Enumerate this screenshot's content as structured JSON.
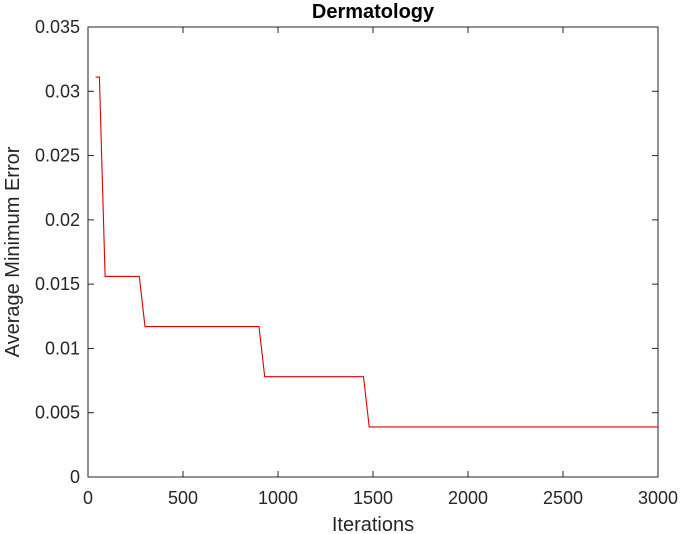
{
  "chart_data": {
    "type": "line",
    "title": "Dermatology",
    "xlabel": "Iterations",
    "ylabel": "Average Minimum Error",
    "xlim": [
      0,
      3000
    ],
    "ylim": [
      0,
      0.035
    ],
    "xticks": [
      0,
      500,
      1000,
      1500,
      2000,
      2500,
      3000
    ],
    "xtick_labels": [
      "0",
      "500",
      "1000",
      "1500",
      "2000",
      "2500",
      "3000"
    ],
    "yticks": [
      0,
      0.005,
      0.01,
      0.015,
      0.02,
      0.025,
      0.03,
      0.035
    ],
    "ytick_labels": [
      "0",
      "0.005",
      "0.01",
      "0.015",
      "0.02",
      "0.025",
      "0.03",
      "0.035"
    ],
    "grid": false,
    "series": [
      {
        "color": "#e00000",
        "x": [
          40,
          60,
          90,
          270,
          300,
          900,
          930,
          1450,
          1480,
          3000
        ],
        "y": [
          0.0311,
          0.0311,
          0.0156,
          0.0156,
          0.0117,
          0.0117,
          0.0078,
          0.0078,
          0.0039,
          0.0039
        ]
      }
    ]
  }
}
